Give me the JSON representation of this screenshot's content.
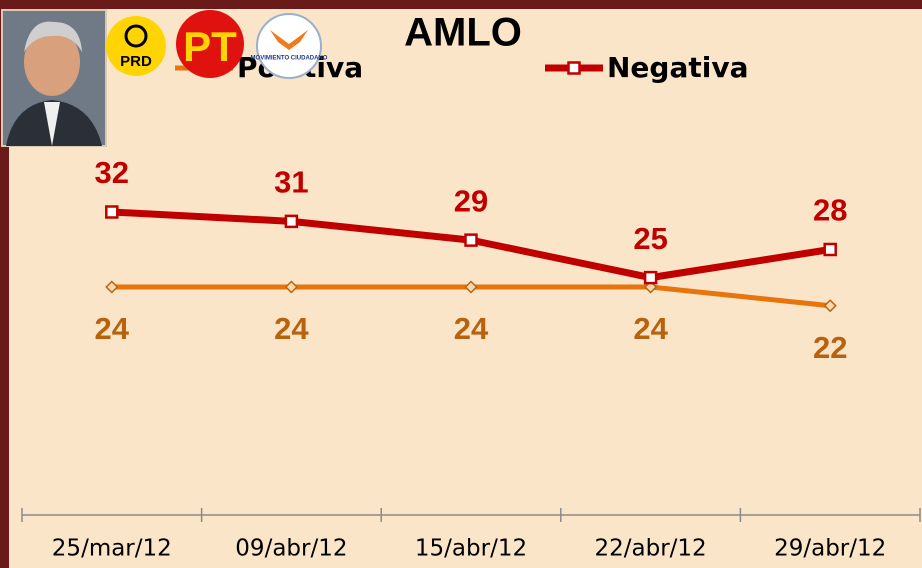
{
  "logos": [
    "PRD",
    "PT",
    "MOVIMIENTO CIUDADANO"
  ],
  "chart_data": {
    "type": "line",
    "title": "AMLO",
    "categories": [
      "25/mar/12",
      "09/abr/12",
      "15/abr/12",
      "22/abr/12",
      "29/abr/12"
    ],
    "series": [
      {
        "name": "Positiva",
        "color": "#e8740c",
        "label_color": "#b8620e",
        "marker": "diamond",
        "values": [
          24,
          24,
          24,
          24,
          22
        ]
      },
      {
        "name": "Negativa",
        "color": "#c00000",
        "label_color": "#c00000",
        "marker": "square",
        "values": [
          32,
          31,
          29,
          25,
          28
        ]
      }
    ],
    "ylim": [
      0,
      48
    ],
    "grid": false,
    "legend": "top"
  }
}
